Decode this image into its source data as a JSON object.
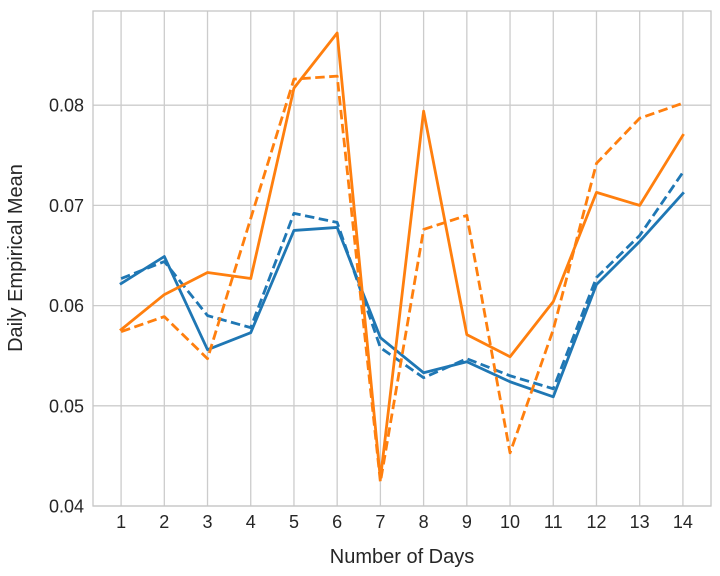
{
  "chart_data": {
    "type": "line",
    "title": "",
    "xlabel": "Number of Days",
    "ylabel": "Daily Empirical Mean",
    "x": [
      1,
      2,
      3,
      4,
      5,
      6,
      7,
      8,
      9,
      10,
      11,
      12,
      13,
      14
    ],
    "series": [
      {
        "name": "blue-solid",
        "color": "#1f77b4",
        "style": "solid",
        "values": [
          0.0622,
          0.0649,
          0.0556,
          0.0573,
          0.0675,
          0.0678,
          0.0568,
          0.0533,
          0.0544,
          0.0524,
          0.0509,
          0.0621,
          0.0664,
          0.0712
        ]
      },
      {
        "name": "blue-dashed",
        "color": "#1f77b4",
        "style": "dashed",
        "values": [
          0.0627,
          0.0644,
          0.059,
          0.0578,
          0.0692,
          0.0683,
          0.0558,
          0.0528,
          0.0547,
          0.053,
          0.0517,
          0.0628,
          0.067,
          0.0733
        ]
      },
      {
        "name": "orange-solid",
        "color": "#ff7f0e",
        "style": "solid",
        "values": [
          0.0576,
          0.0611,
          0.0633,
          0.0627,
          0.0817,
          0.0872,
          0.0427,
          0.0794,
          0.0571,
          0.0549,
          0.0604,
          0.0713,
          0.07,
          0.077
        ]
      },
      {
        "name": "orange-dashed",
        "color": "#ff7f0e",
        "style": "dashed",
        "values": [
          0.0574,
          0.0589,
          0.0547,
          0.0687,
          0.0826,
          0.0829,
          0.0424,
          0.0676,
          0.069,
          0.0453,
          0.0576,
          0.0742,
          0.0787,
          0.0802
        ]
      }
    ],
    "xticks": {
      "values": [
        1,
        2,
        3,
        4,
        5,
        6,
        7,
        8,
        9,
        10,
        11,
        12,
        13,
        14
      ],
      "labels": [
        "1",
        "2",
        "3",
        "4",
        "5",
        "6",
        "7",
        "8",
        "9",
        "10",
        "11",
        "12",
        "13",
        "14"
      ]
    },
    "yticks": {
      "values": [
        0.04,
        0.05,
        0.06,
        0.07,
        0.08
      ],
      "labels": [
        "0.04",
        "0.05",
        "0.06",
        "0.07",
        "0.08"
      ]
    },
    "xlim": [
      0.35,
      14.65
    ],
    "ylim": [
      0.04,
      0.0894
    ],
    "grid": true,
    "legend": "none",
    "grid_color": "#cccccc",
    "spine_color": "#c6c6c6",
    "text_color": "#262626"
  }
}
